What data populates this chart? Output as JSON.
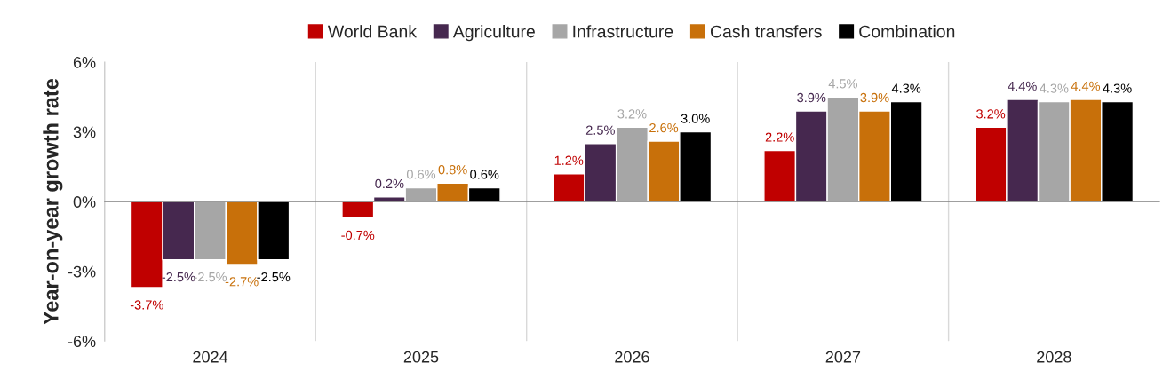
{
  "chart_data": {
    "type": "bar",
    "ylabel": "Year-on-year growth rate",
    "categories": [
      "2024",
      "2025",
      "2026",
      "2027",
      "2028"
    ],
    "series": [
      {
        "name": "World Bank",
        "color": "#c00000",
        "values": [
          -3.7,
          -0.7,
          1.2,
          2.2,
          3.2
        ],
        "value_labels": [
          "-3.7%",
          "-0.7%",
          "1.2%",
          "2.2%",
          "3.2%"
        ]
      },
      {
        "name": "Agriculture",
        "color": "#46284f",
        "values": [
          -2.5,
          0.2,
          2.5,
          3.9,
          4.4
        ],
        "value_labels": [
          "-2.5%",
          "0.2%",
          "2.5%",
          "3.9%",
          "4.4%"
        ]
      },
      {
        "name": "Infrastructure",
        "color": "#a6a6a6",
        "values": [
          -2.5,
          0.6,
          3.2,
          4.5,
          4.3
        ],
        "value_labels": [
          "-2.5%",
          "0.6%",
          "3.2%",
          "4.5%",
          "4.3%"
        ]
      },
      {
        "name": "Cash transfers",
        "color": "#c8700a",
        "values": [
          -2.7,
          0.8,
          2.6,
          3.9,
          4.4
        ],
        "value_labels": [
          "-2.7%",
          "0.8%",
          "2.6%",
          "3.9%",
          "4.4%"
        ]
      },
      {
        "name": "Combination",
        "color": "#000000",
        "values": [
          -2.5,
          0.6,
          3.0,
          4.3,
          4.3
        ],
        "value_labels": [
          "-2.5%",
          "0.6%",
          "3.0%",
          "4.3%",
          "4.3%"
        ]
      }
    ],
    "ylim": [
      -6,
      6
    ],
    "yticks": [
      {
        "value": -6,
        "label": "-6%"
      },
      {
        "value": -3,
        "label": "-3%"
      },
      {
        "value": 0,
        "label": "0%"
      },
      {
        "value": 3,
        "label": "3%"
      },
      {
        "value": 6,
        "label": "6%"
      }
    ],
    "grid": false,
    "legend": "top"
  }
}
